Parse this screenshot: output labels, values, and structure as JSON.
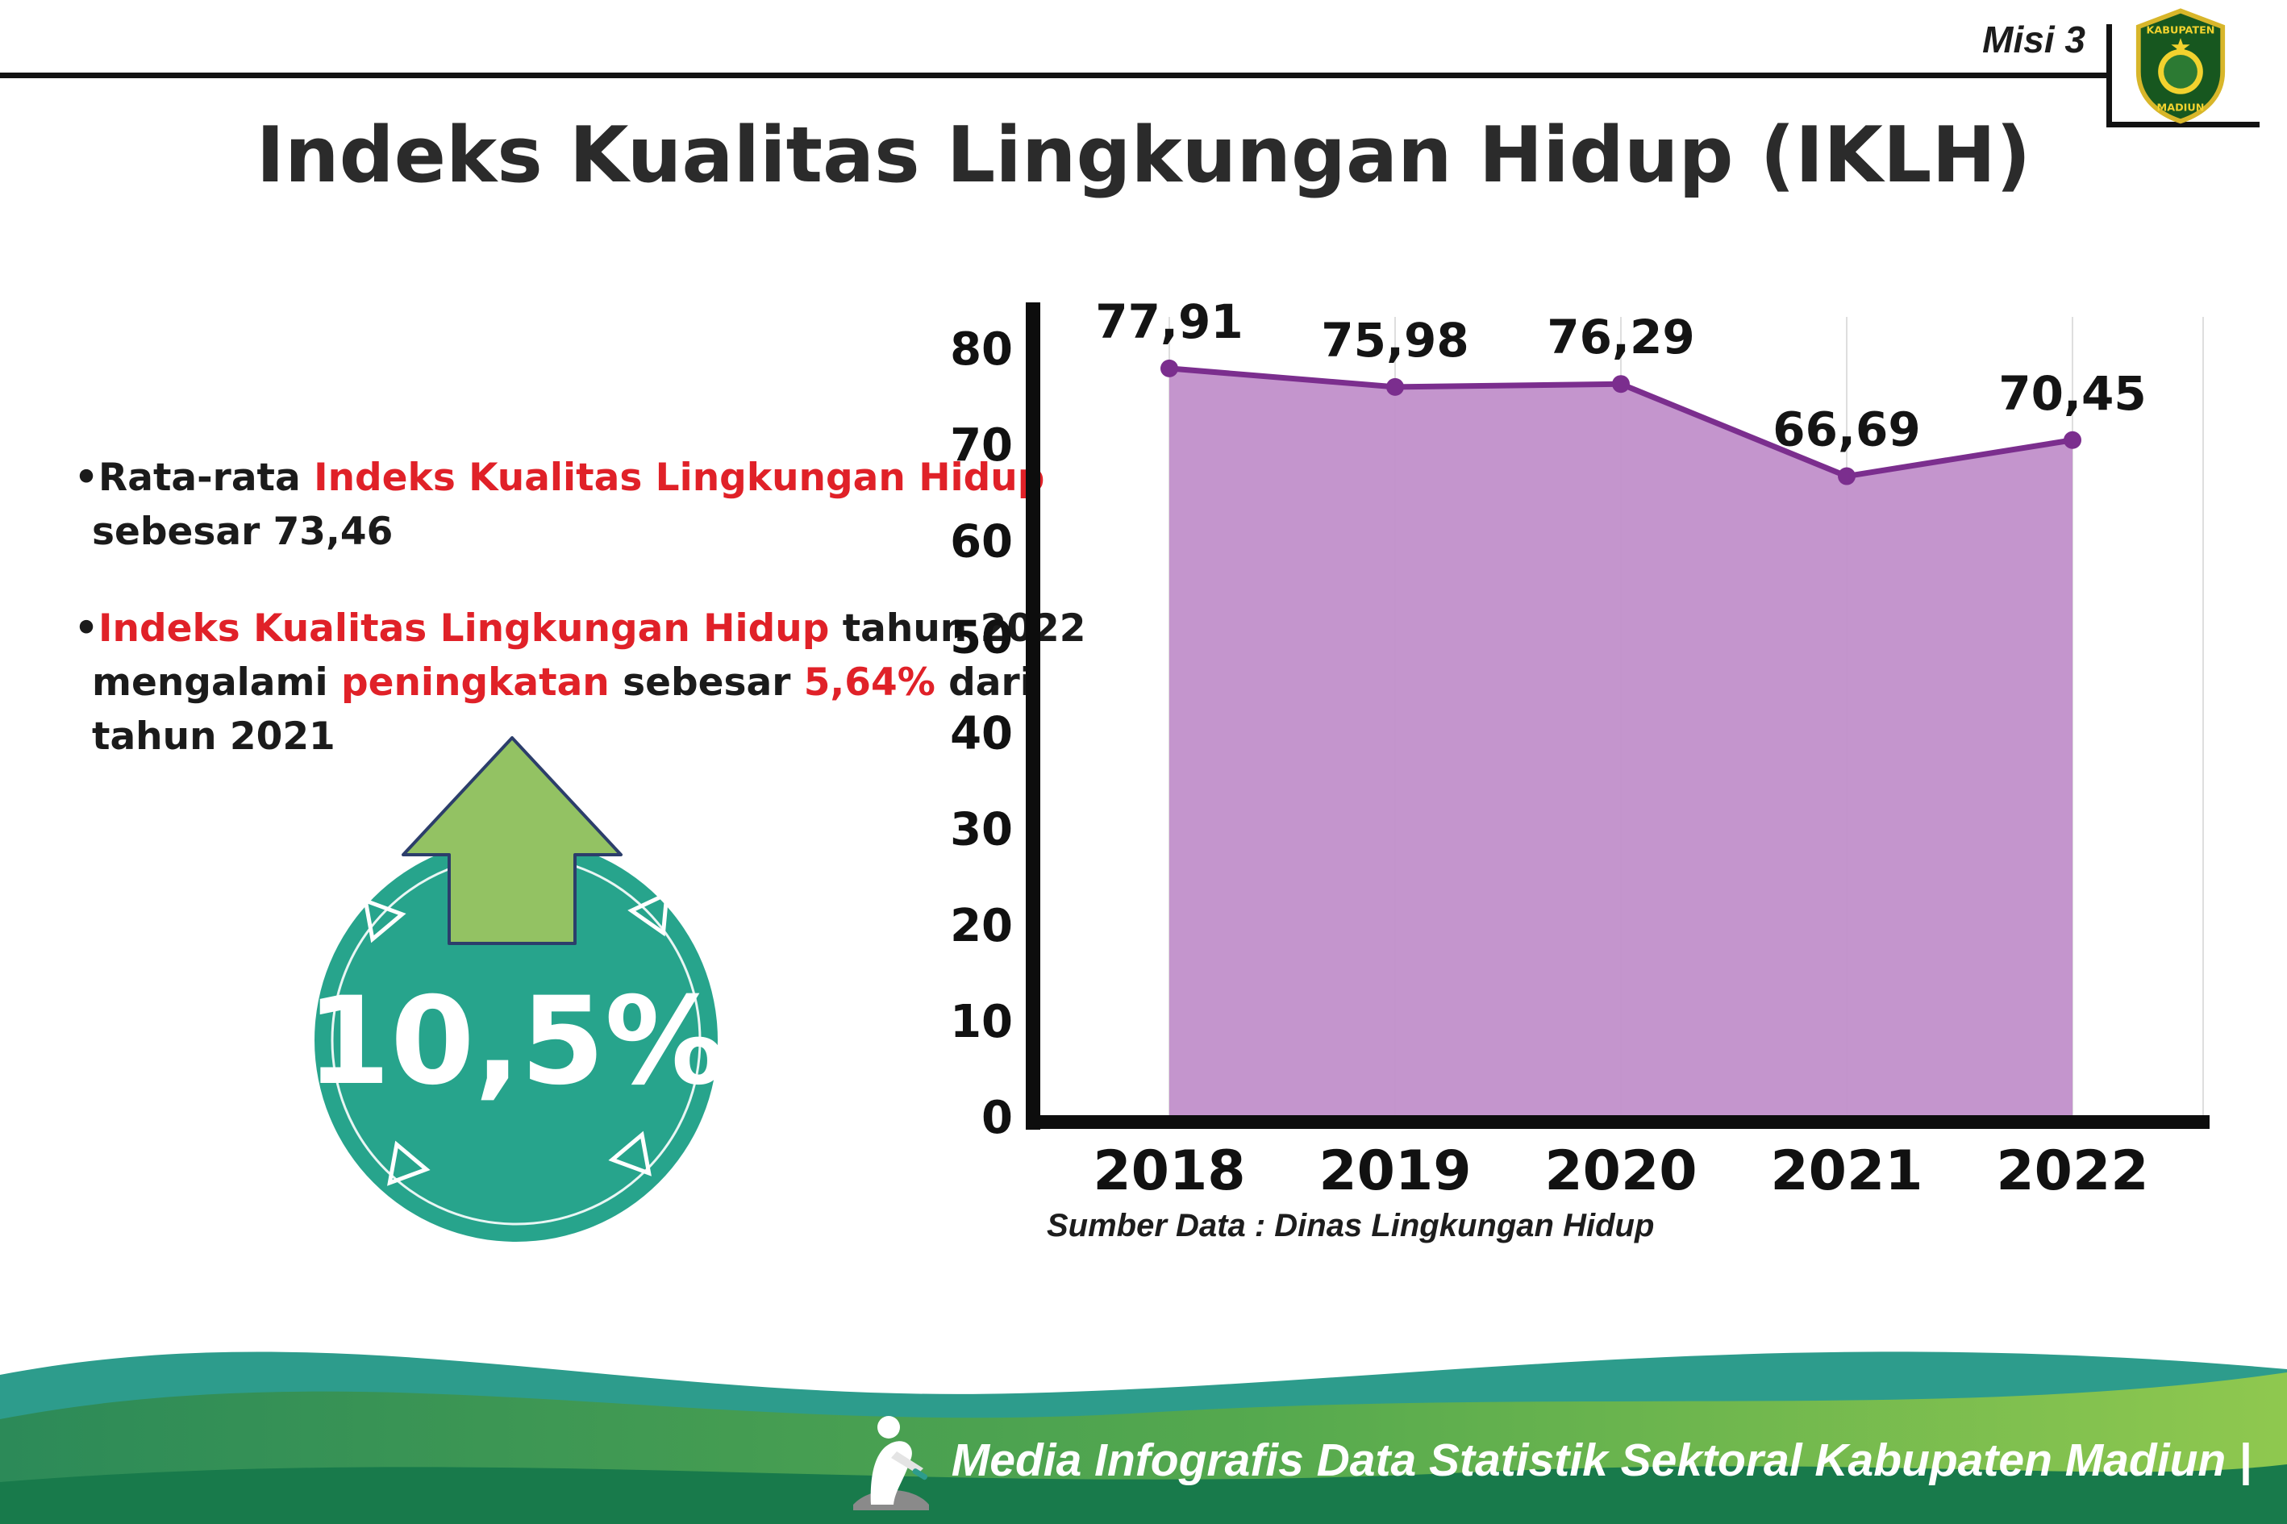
{
  "header": {
    "misi": "Misi 3",
    "title": "Indeks Kualitas Lingkungan Hidup (IKLH)",
    "logo_top": "KABUPATEN",
    "logo_bottom": "MADIUN"
  },
  "colors": {
    "red": "#e02128",
    "badge_teal": "#27a48c",
    "arrow_green": "#93c263"
  },
  "bullets": [
    {
      "lines": [
        [
          {
            "t": "•",
            "c": "k"
          },
          {
            "t": "Rata-rata ",
            "c": "k"
          },
          {
            "t": "Indeks Kualitas Lingkungan Hidup",
            "c": "r"
          }
        ],
        [
          {
            "t": "sebesar 73,46",
            "c": "k"
          }
        ]
      ]
    },
    {
      "lines": [
        [
          {
            "t": "•",
            "c": "k"
          },
          {
            "t": "Indeks Kualitas Lingkungan Hidup",
            "c": "r"
          },
          {
            "t": " tahun 2022",
            "c": "k"
          }
        ],
        [
          {
            "t": "mengalami ",
            "c": "k"
          },
          {
            "t": "peningkatan",
            "c": "r"
          },
          {
            "t": " sebesar ",
            "c": "k"
          },
          {
            "t": "5,64%",
            "c": "r"
          },
          {
            "t": " dari",
            "c": "k"
          }
        ],
        [
          {
            "t": "tahun 2021",
            "c": "k"
          }
        ]
      ]
    }
  ],
  "badge": {
    "value": "10,5%"
  },
  "chart_data": {
    "type": "area",
    "categories": [
      "2018",
      "2019",
      "2020",
      "2021",
      "2022"
    ],
    "values": [
      77.91,
      75.98,
      76.29,
      66.69,
      70.45
    ],
    "value_labels": [
      "77,91",
      "75,98",
      "76,29",
      "66,69",
      "70,45"
    ],
    "title": "",
    "xlabel": "",
    "ylabel": "",
    "ylim": [
      0,
      80
    ],
    "yticks": [
      0,
      10,
      20,
      30,
      40,
      50,
      60,
      70,
      80
    ],
    "grid": "vertical-light",
    "legend": "none",
    "area_fill": "#c18fca",
    "line_color": "#7b2e8e",
    "source": "Sumber Data : Dinas Lingkungan Hidup"
  },
  "footer": {
    "text": "Media Infografis Data Statistik Sektoral Kabupaten Madiun |"
  }
}
